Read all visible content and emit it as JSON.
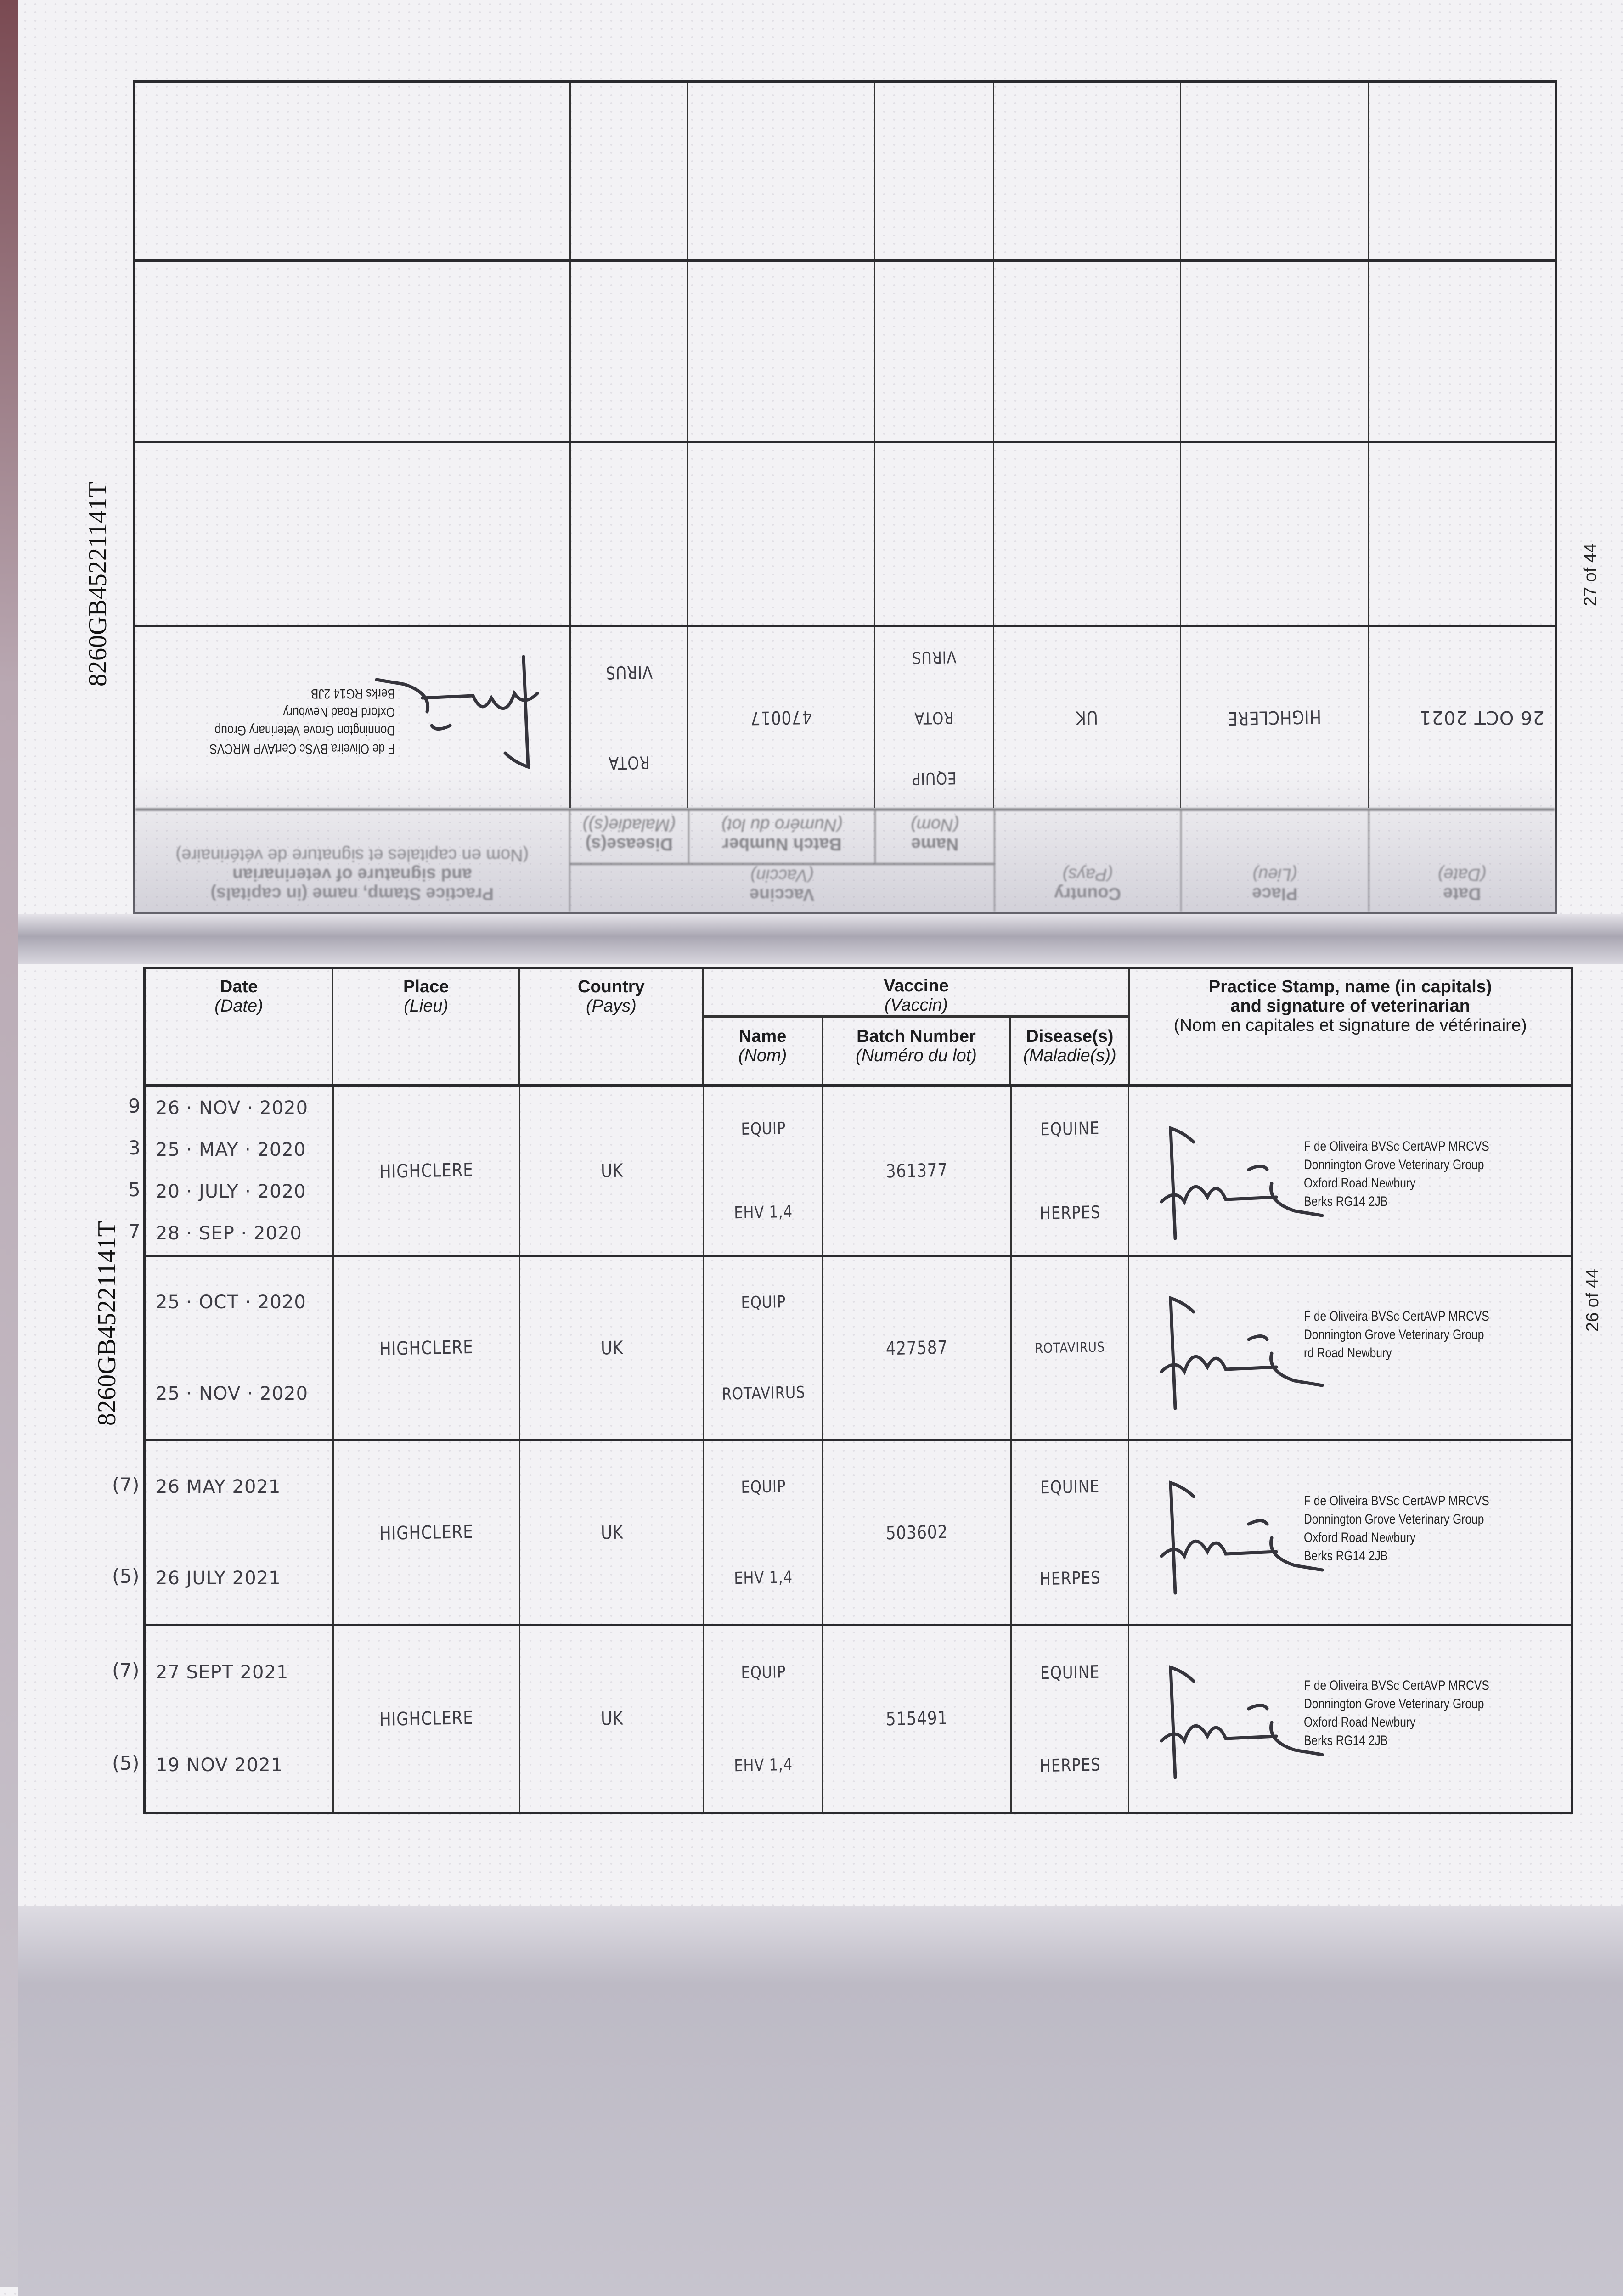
{
  "document_id": "8260GB45221141T",
  "headers": {
    "date": "Date",
    "date_fr": "(Date)",
    "place": "Place",
    "place_fr": "(Lieu)",
    "country": "Country",
    "country_fr": "(Pays)",
    "vaccine": "Vaccine",
    "vaccine_fr": "(Vaccin)",
    "name": "Name",
    "name_fr": "(Nom)",
    "batch": "Batch Number",
    "batch_fr": "(Numéro du lot)",
    "disease": "Disease(s)",
    "disease_fr": "(Maladie(s))",
    "stamp_1": "Practice Stamp, name (in capitals)",
    "stamp_2": "and signature of veterinarian",
    "stamp_3": "(Nom en capitales et signature de vétérinaire)"
  },
  "top_page": {
    "page_number": "27 of 44",
    "orientation": "upside-down",
    "rows": [
      {
        "margin": [],
        "dates": [
          "26 OCT 2021"
        ],
        "place": "HIGHCLERE",
        "country": "UK",
        "name": [
          "EQUIP",
          "ROTA",
          "VIRUS"
        ],
        "batch": "470017",
        "disease": [
          "ROTA",
          "VIRUS"
        ],
        "stamp": [
          "F de Oliveira BVSc CertAVP MRCVS",
          "Donnington Grove Veterinary Group",
          "Oxford Road Newbury",
          "Berks RG14 2JB"
        ]
      },
      {
        "empty": true
      },
      {
        "empty": true
      },
      {
        "empty": true
      }
    ]
  },
  "bottom_page": {
    "page_number": "26 of 44",
    "rows": [
      {
        "margin": [
          "9",
          "3",
          "5",
          "7"
        ],
        "dates": [
          "26 · NOV · 2020",
          "25 · MAY · 2020",
          "20 · JULY · 2020",
          "28 · SEP · 2020"
        ],
        "place": "HIGHCLERE",
        "country": "UK",
        "name": [
          "EQUIP",
          "EHV 1,4"
        ],
        "batch": "361377",
        "disease": [
          "EQUINE",
          "HERPES"
        ],
        "stamp": [
          "F de Oliveira BVSc CertAVP MRCVS",
          "Donnington Grove Veterinary Group",
          "Oxford Road Newbury",
          "Berks RG14 2JB"
        ]
      },
      {
        "margin": [],
        "dates": [
          "25 · OCT · 2020",
          "25 · NOV · 2020"
        ],
        "place": "HIGHCLERE",
        "country": "UK",
        "name": [
          "EQUIP",
          "ROTAVIRUS"
        ],
        "batch": "427587",
        "disease": [
          "ROTAVIRUS"
        ],
        "stamp": [
          "F de Oliveira BVSc CertAVP MRCVS",
          "Donnington Grove Veterinary Group",
          "rd Road Newbury"
        ]
      },
      {
        "margin": [
          "(7)",
          "(5)"
        ],
        "dates": [
          "26 MAY 2021",
          "26 JULY 2021"
        ],
        "place": "HIGHCLERE",
        "country": "UK",
        "name": [
          "EQUIP",
          "EHV 1,4"
        ],
        "batch": "503602",
        "disease": [
          "EQUINE",
          "HERPES"
        ],
        "stamp": [
          "F de Oliveira BVSc CertAVP MRCVS",
          "Donnington Grove Veterinary Group",
          "Oxford Road Newbury",
          "Berks RG14 2JB"
        ]
      },
      {
        "margin": [
          "(7)",
          "(5)"
        ],
        "dates": [
          "27 SEPT 2021",
          "19 NOV 2021"
        ],
        "place": "HIGHCLERE",
        "country": "UK",
        "name": [
          "EQUIP",
          "EHV 1,4"
        ],
        "batch": "515491",
        "disease": [
          "EQUINE",
          "HERPES"
        ],
        "stamp": [
          "F de Oliveira BVSc CertAVP MRCVS",
          "Donnington Grove Veterinary Group",
          "Oxford Road Newbury",
          "Berks RG14 2JB"
        ]
      }
    ]
  }
}
